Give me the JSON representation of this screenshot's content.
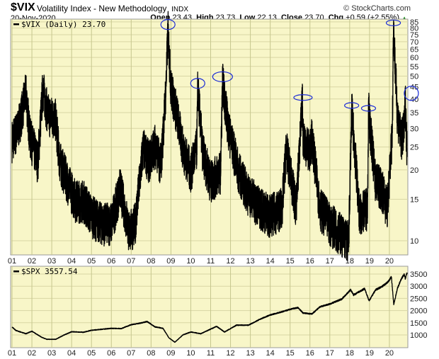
{
  "header": {
    "symbol": "$VIX",
    "name": "Volatility Index - New Methodology",
    "exchange": "INDX",
    "source": "© StockCharts.com",
    "date": "20-Nov-2020",
    "open_label": "Open",
    "open": "23.43",
    "high_label": "High",
    "high": "23.73",
    "low_label": "Low",
    "low": "22.13",
    "close_label": "Close",
    "close": "23.70",
    "chg_label": "Chg",
    "chg": "+0.59 (+2.55%)",
    "chg_arrow": "▲"
  },
  "colors": {
    "background": "#f8f6c8",
    "grid": "#d9d6a4",
    "year_grid": "#c6c78e",
    "line": "#000000",
    "ellipse": "#1a2bd6",
    "up": "#1a8a1a"
  },
  "chart_data": [
    {
      "type": "line",
      "title": "$VIX (Daily) 23.70",
      "legend": "$VIX (Daily) 23.70",
      "scale": "log",
      "ylim": [
        8.5,
        87
      ],
      "yticks": [
        10,
        15,
        20,
        25,
        30,
        35,
        40,
        45,
        50,
        55,
        60,
        65,
        70,
        75,
        80,
        85
      ],
      "xticks": [
        "01",
        "02",
        "03",
        "04",
        "05",
        "06",
        "07",
        "08",
        "09",
        "10",
        "11",
        "12",
        "13",
        "14",
        "15",
        "16",
        "17",
        "18",
        "19",
        "20"
      ],
      "x": [
        2001.0,
        2001.3,
        2001.7,
        2001.9,
        2002.3,
        2002.55,
        2002.8,
        2003.2,
        2003.4,
        2003.8,
        2004.2,
        2004.6,
        2005.0,
        2005.5,
        2006.0,
        2006.45,
        2006.9,
        2007.2,
        2007.6,
        2007.9,
        2008.2,
        2008.5,
        2008.75,
        2008.85,
        2009.0,
        2009.3,
        2009.6,
        2010.0,
        2010.3,
        2010.35,
        2010.6,
        2011.0,
        2011.5,
        2011.6,
        2011.9,
        2012.4,
        2012.9,
        2013.5,
        2014.0,
        2014.6,
        2014.8,
        2015.3,
        2015.62,
        2015.65,
        2016.0,
        2016.1,
        2016.5,
        2017.0,
        2017.5,
        2017.95,
        2018.1,
        2018.5,
        2018.9,
        2018.95,
        2019.3,
        2019.6,
        2019.9,
        2020.15,
        2020.2,
        2020.4,
        2020.6,
        2020.75,
        2020.8,
        2020.89
      ],
      "values": [
        27,
        30,
        43,
        28,
        22,
        45,
        35,
        33,
        22,
        18,
        15,
        15,
        13,
        12,
        12,
        17,
        11,
        12,
        25,
        22,
        26,
        21,
        45,
        80,
        45,
        35,
        25,
        20,
        25,
        45,
        24,
        18,
        20,
        48,
        30,
        20,
        16,
        14,
        13,
        14,
        25,
        14,
        40,
        28,
        24,
        28,
        14,
        12,
        11,
        10,
        37,
        13,
        14,
        36,
        18,
        17,
        14,
        30,
        83,
        35,
        27,
        30,
        40,
        23.7
      ]
    },
    {
      "type": "line",
      "title": "$SPX 3557.54",
      "legend": "$SPX 3557.54",
      "scale": "linear",
      "ylim": [
        500,
        3700
      ],
      "yticks": [
        1000,
        1500,
        2000,
        2500,
        3000,
        3500
      ],
      "xticks": [
        "01",
        "02",
        "03",
        "04",
        "05",
        "06",
        "07",
        "08",
        "09",
        "10",
        "11",
        "12",
        "13",
        "14",
        "15",
        "16",
        "17",
        "18",
        "19",
        "20"
      ],
      "x": [
        2001.0,
        2001.2,
        2001.7,
        2002.0,
        2002.5,
        2002.75,
        2003.2,
        2003.6,
        2004.0,
        2004.6,
        2005.0,
        2006.0,
        2006.5,
        2007.0,
        2007.5,
        2007.8,
        2008.2,
        2008.6,
        2008.9,
        2009.2,
        2009.6,
        2010.0,
        2010.5,
        2011.3,
        2011.7,
        2012.3,
        2012.9,
        2013.5,
        2014.0,
        2014.6,
        2015.0,
        2015.4,
        2015.65,
        2016.1,
        2016.5,
        2017.0,
        2017.6,
        2018.05,
        2018.2,
        2018.75,
        2018.98,
        2019.3,
        2019.6,
        2019.9,
        2020.1,
        2020.22,
        2020.4,
        2020.6,
        2020.75,
        2020.8,
        2020.89
      ],
      "values": [
        1330,
        1180,
        1050,
        1150,
        900,
        820,
        820,
        990,
        1130,
        1110,
        1190,
        1270,
        1260,
        1420,
        1490,
        1550,
        1330,
        1270,
        880,
        700,
        1000,
        1120,
        1050,
        1350,
        1120,
        1400,
        1400,
        1650,
        1820,
        1950,
        2050,
        2120,
        1900,
        1860,
        2150,
        2270,
        2470,
        2850,
        2640,
        2900,
        2400,
        2850,
        2970,
        3150,
        3380,
        2240,
        2900,
        3300,
        3500,
        3300,
        3557.54
      ]
    }
  ]
}
